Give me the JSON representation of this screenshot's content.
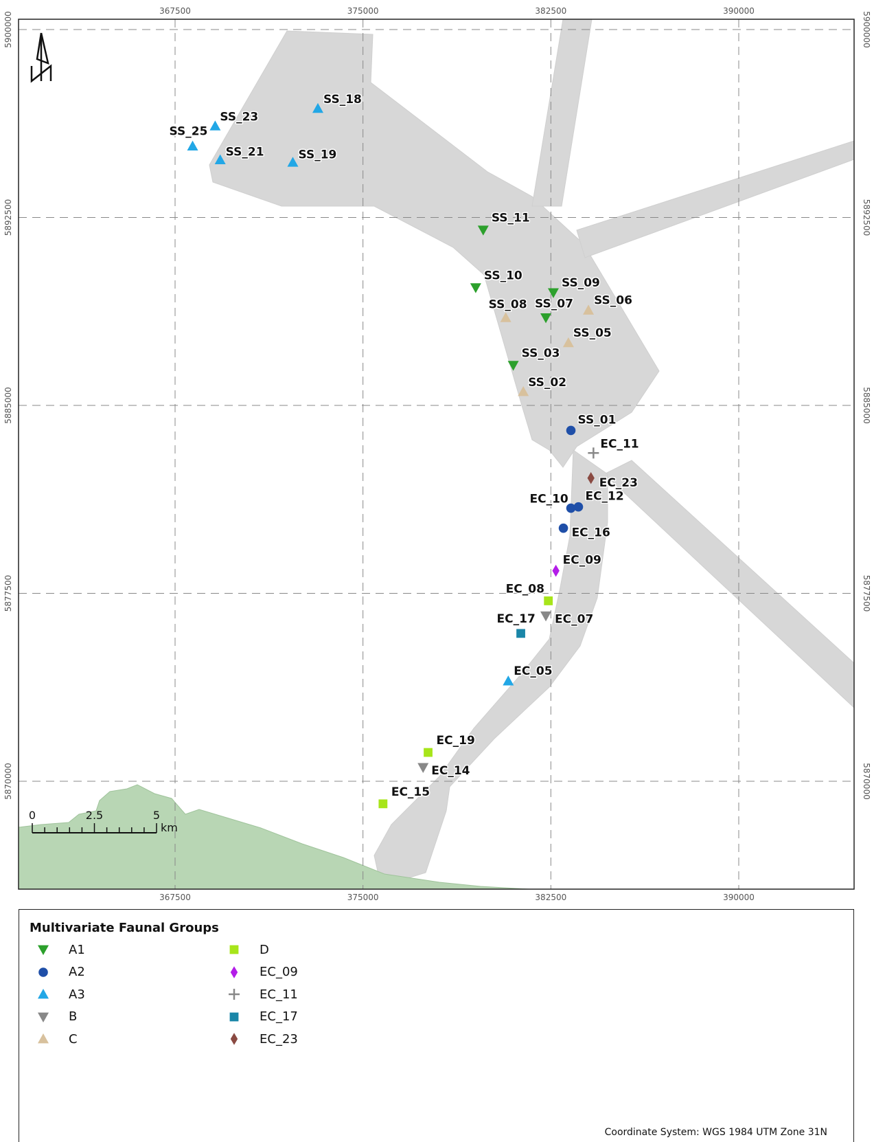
{
  "map": {
    "x_ticks": [
      "367500",
      "375000",
      "382500",
      "390000"
    ],
    "y_ticks": [
      "5900000",
      "5892500",
      "5885000",
      "5877500",
      "5870000"
    ],
    "north_label": "N",
    "scale": {
      "labels": [
        "0",
        "2.5",
        "5"
      ],
      "unit": "km"
    },
    "colors": {
      "A1": "#2ca02c",
      "A2": "#1f4fa8",
      "A3": "#22a7e6",
      "B": "#888888",
      "C": "#d8c19d",
      "D": "#a7e51a",
      "EC_09": "#b31de8",
      "EC_11": "#888888",
      "EC_17": "#1a86a8",
      "EC_23": "#8a4a42",
      "land": "#b8d6b4",
      "survey": "#d7d7d7"
    },
    "sites": [
      {
        "id": "SS_18",
        "group": "A3",
        "x": 373200,
        "y": 5896850
      },
      {
        "id": "SS_23",
        "group": "A3",
        "x": 369100,
        "y": 5896150
      },
      {
        "id": "SS_25",
        "group": "A3",
        "x": 368200,
        "y": 5895350
      },
      {
        "id": "SS_21",
        "group": "A3",
        "x": 369300,
        "y": 5894800
      },
      {
        "id": "SS_19",
        "group": "A3",
        "x": 372200,
        "y": 5894700
      },
      {
        "id": "SS_11",
        "group": "A1",
        "x": 379800,
        "y": 5892000
      },
      {
        "id": "SS_10",
        "group": "A1",
        "x": 379500,
        "y": 5889700
      },
      {
        "id": "SS_09",
        "group": "A1",
        "x": 382600,
        "y": 5889500
      },
      {
        "id": "SS_08",
        "group": "C",
        "x": 380700,
        "y": 5888500
      },
      {
        "id": "SS_07",
        "group": "A1",
        "x": 382300,
        "y": 5888500
      },
      {
        "id": "SS_06",
        "group": "C",
        "x": 384000,
        "y": 5888800
      },
      {
        "id": "SS_05",
        "group": "C",
        "x": 383200,
        "y": 5887500
      },
      {
        "id": "SS_03",
        "group": "A1",
        "x": 381000,
        "y": 5886600
      },
      {
        "id": "SS_02",
        "group": "C",
        "x": 381400,
        "y": 5885550
      },
      {
        "id": "SS_01",
        "group": "A2",
        "x": 383300,
        "y": 5884000
      },
      {
        "id": "EC_11",
        "group": "EC_11",
        "x": 384200,
        "y": 5883100
      },
      {
        "id": "EC_23",
        "group": "EC_23",
        "x": 384100,
        "y": 5882100
      },
      {
        "id": "EC_10",
        "group": "A2",
        "x": 383300,
        "y": 5880900
      },
      {
        "id": "EC_12",
        "group": "A2",
        "x": 383600,
        "y": 5880950
      },
      {
        "id": "EC_16",
        "group": "A2",
        "x": 383000,
        "y": 5880100
      },
      {
        "id": "EC_09",
        "group": "EC_09",
        "x": 382700,
        "y": 5878400
      },
      {
        "id": "EC_08",
        "group": "D",
        "x": 382400,
        "y": 5877200
      },
      {
        "id": "EC_07",
        "group": "B",
        "x": 382300,
        "y": 5876600
      },
      {
        "id": "EC_17",
        "group": "EC_17",
        "x": 381300,
        "y": 5875900
      },
      {
        "id": "EC_05",
        "group": "A3",
        "x": 380800,
        "y": 5874000
      },
      {
        "id": "EC_19",
        "group": "D",
        "x": 377600,
        "y": 5871150
      },
      {
        "id": "EC_14",
        "group": "B",
        "x": 377400,
        "y": 5870550
      },
      {
        "id": "EC_15",
        "group": "D",
        "x": 375800,
        "y": 5869100
      }
    ]
  },
  "legend": {
    "title": "Multivariate Faunal Groups",
    "items": [
      {
        "label": "A1",
        "group": "A1",
        "shape": "tri-down"
      },
      {
        "label": "A2",
        "group": "A2",
        "shape": "circle"
      },
      {
        "label": "A3",
        "group": "A3",
        "shape": "tri-up"
      },
      {
        "label": "B",
        "group": "B",
        "shape": "tri-down"
      },
      {
        "label": "C",
        "group": "C",
        "shape": "tri-up"
      },
      {
        "label": "D",
        "group": "D",
        "shape": "square"
      },
      {
        "label": "EC_09",
        "group": "EC_09",
        "shape": "diamond"
      },
      {
        "label": "EC_11",
        "group": "EC_11",
        "shape": "plus"
      },
      {
        "label": "EC_17",
        "group": "EC_17",
        "shape": "square"
      },
      {
        "label": "EC_23",
        "group": "EC_23",
        "shape": "diamond"
      }
    ]
  },
  "footer": {
    "crs": "Coordinate System: WGS 1984 UTM Zone 31N"
  }
}
